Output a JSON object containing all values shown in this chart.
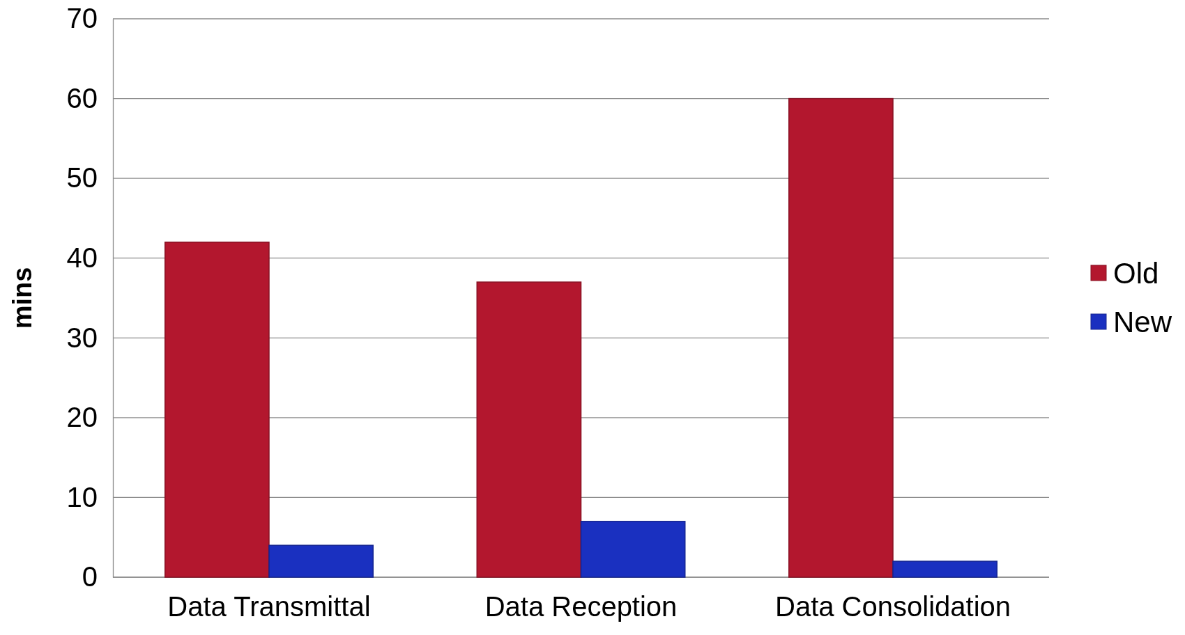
{
  "chart_data": {
    "type": "bar",
    "ylabel": "mins",
    "categories": [
      "Data Transmittal",
      "Data Reception",
      "Data Consolidation"
    ],
    "series": [
      {
        "name": "Old",
        "color": "#b3172e",
        "values": [
          42,
          37,
          60
        ]
      },
      {
        "name": "New",
        "color": "#1a30c0",
        "values": [
          4,
          7,
          2
        ]
      }
    ],
    "ylim": [
      0,
      70
    ],
    "yticks": [
      0,
      10,
      20,
      30,
      40,
      50,
      60,
      70
    ],
    "grid": "y",
    "legend": "right"
  }
}
